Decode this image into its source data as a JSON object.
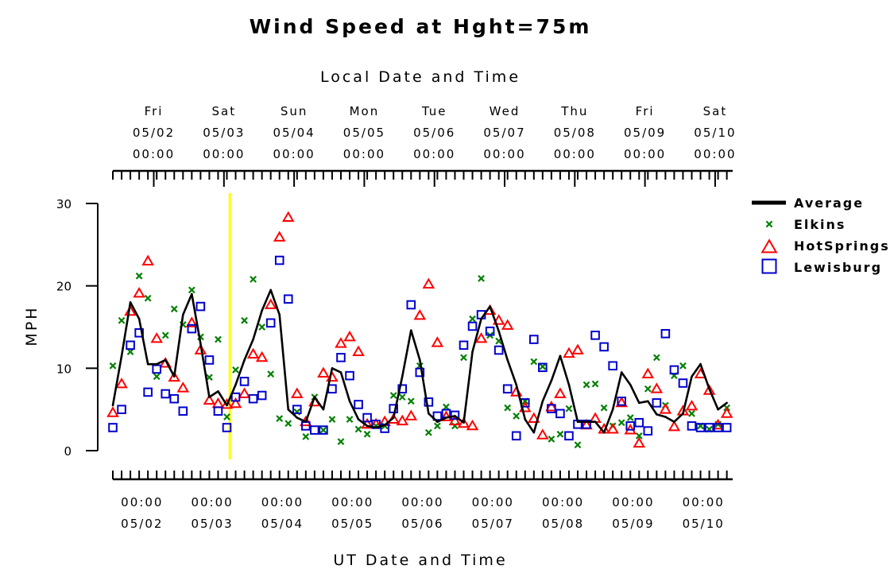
{
  "chart_data": {
    "type": "line",
    "title": "Wind Speed at Hght=75m",
    "top_axis_label": "Local Date and Time",
    "xlabel": "UT Date and Time",
    "ylabel": "MPH",
    "ylim": [
      0,
      30
    ],
    "y_ticks": [
      "0",
      "10",
      "20",
      "30"
    ],
    "x_unit": "hours since 05/01 00:00 UT",
    "xlim": [
      14,
      226
    ],
    "ut_ticks": [
      {
        "time": "00:00",
        "date": "05/02"
      },
      {
        "time": "00:00",
        "date": "05/03"
      },
      {
        "time": "00:00",
        "date": "05/04"
      },
      {
        "time": "00:00",
        "date": "05/05"
      },
      {
        "time": "00:00",
        "date": "05/06"
      },
      {
        "time": "00:00",
        "date": "05/07"
      },
      {
        "time": "00:00",
        "date": "05/08"
      },
      {
        "time": "00:00",
        "date": "05/09"
      },
      {
        "time": "00:00",
        "date": "05/10"
      }
    ],
    "local_ticks": [
      {
        "day": "Fri",
        "date": "05/02",
        "time": "00:00"
      },
      {
        "day": "Sat",
        "date": "05/03",
        "time": "00:00"
      },
      {
        "day": "Sun",
        "date": "05/04",
        "time": "00:00"
      },
      {
        "day": "Mon",
        "date": "05/05",
        "time": "00:00"
      },
      {
        "day": "Tue",
        "date": "05/06",
        "time": "00:00"
      },
      {
        "day": "Wed",
        "date": "05/07",
        "time": "00:00"
      },
      {
        "day": "Thu",
        "date": "05/08",
        "time": "00:00"
      },
      {
        "day": "Fri",
        "date": "05/09",
        "time": "00:00"
      },
      {
        "day": "Sat",
        "date": "05/10",
        "time": "00:00"
      }
    ],
    "marker_line": {
      "x": 54,
      "color": "#ffff00"
    },
    "legend_position": "right",
    "series": [
      {
        "name": "Average",
        "style": "line",
        "color": "#000000",
        "x": [
          14,
          17,
          20,
          23,
          26,
          29,
          32,
          35,
          38,
          41,
          44,
          47,
          50,
          53,
          56,
          59,
          62,
          65,
          68,
          71,
          74,
          77,
          80,
          83,
          86,
          89,
          92,
          95,
          98,
          101,
          104,
          107,
          110,
          113,
          116,
          119,
          122,
          125,
          128,
          131,
          134,
          137,
          140,
          143,
          146,
          149,
          152,
          155,
          158,
          161,
          164,
          167,
          170,
          173,
          176,
          179,
          182,
          185,
          188,
          191,
          194,
          197,
          200,
          203,
          206,
          209,
          212,
          215,
          218,
          221,
          224
        ],
        "y": [
          5.5,
          11.5,
          18,
          16,
          10.5,
          10.5,
          11,
          9,
          16.5,
          19,
          13,
          6.5,
          7.2,
          5.5,
          8,
          11,
          13.5,
          17,
          19.5,
          16.5,
          5,
          4,
          3.5,
          6.5,
          5,
          10,
          9.5,
          6,
          3.8,
          3,
          2.8,
          3.1,
          4,
          9,
          14.6,
          11,
          4.5,
          3.5,
          4,
          4.2,
          3.4,
          12,
          16,
          17.5,
          14.5,
          11,
          8,
          3.8,
          2.2,
          6,
          8.5,
          11.5,
          8,
          3.5,
          3.5,
          3.5,
          2.2,
          5,
          9.5,
          8,
          5.8,
          6,
          4.4,
          4.1,
          3.5,
          4.5,
          9,
          10.5,
          7.5,
          5,
          5.8
        ]
      },
      {
        "name": "Elkins",
        "style": "x",
        "color": "#008000",
        "x": [
          14,
          17,
          20,
          23,
          26,
          29,
          32,
          35,
          38,
          41,
          44,
          47,
          50,
          53,
          56,
          59,
          62,
          65,
          68,
          71,
          74,
          77,
          80,
          83,
          86,
          89,
          92,
          95,
          98,
          101,
          104,
          107,
          110,
          113,
          116,
          119,
          122,
          125,
          128,
          131,
          134,
          137,
          140,
          143,
          146,
          149,
          152,
          155,
          158,
          161,
          164,
          167,
          170,
          173,
          176,
          179,
          182,
          185,
          188,
          191,
          194,
          197,
          200,
          203,
          206,
          209,
          212,
          215,
          218,
          221,
          224
        ],
        "y": [
          10.3,
          15.8,
          12,
          21.2,
          18.5,
          9,
          14,
          17.2,
          15.3,
          19.5,
          13.8,
          8.9,
          13.5,
          4.1,
          9.8,
          15.8,
          20.8,
          15,
          9.3,
          3.9,
          3.3,
          4.7,
          1.7,
          6.5,
          2.5,
          3.8,
          1.1,
          3.8,
          2.6,
          2,
          3,
          3,
          6.7,
          6.5,
          6,
          10.3,
          2.2,
          3,
          5.3,
          3,
          11.3,
          16,
          20.9,
          14,
          13.3,
          5.2,
          4.2,
          6,
          10.8,
          10.2,
          1.4,
          2,
          5.1,
          0.7,
          8,
          8.1,
          5.2,
          3,
          3.4,
          4,
          1.8,
          7.5,
          11.3,
          5.5,
          9.1,
          10.3,
          4.5,
          3,
          2.6,
          3.2,
          5.2
        ]
      },
      {
        "name": "HotSprings",
        "style": "triangle",
        "color": "#ff0000",
        "x": [
          14,
          17,
          20,
          23,
          26,
          29,
          32,
          35,
          38,
          41,
          44,
          47,
          50,
          53,
          56,
          59,
          62,
          65,
          68,
          71,
          74,
          77,
          80,
          83,
          86,
          89,
          92,
          95,
          98,
          101,
          104,
          107,
          110,
          113,
          116,
          119,
          122,
          125,
          128,
          131,
          134,
          137,
          140,
          143,
          146,
          149,
          152,
          155,
          158,
          161,
          164,
          167,
          170,
          173,
          176,
          179,
          182,
          185,
          188,
          191,
          194,
          197,
          200,
          203,
          206,
          209,
          212,
          215,
          218,
          221,
          224
        ],
        "y": [
          4.6,
          8.1,
          16.9,
          19.1,
          23,
          13.6,
          10.6,
          8.9,
          7.6,
          15.5,
          12.2,
          6.1,
          5.7,
          5.6,
          5.7,
          6.9,
          11.7,
          11.3,
          17.7,
          25.9,
          28.3,
          6.9,
          3.5,
          5.9,
          9.4,
          8.9,
          13,
          13.8,
          12,
          3.2,
          3.2,
          3.5,
          3.8,
          3.6,
          4.2,
          16.4,
          20.2,
          13.1,
          4.1,
          3.6,
          3.3,
          3,
          13.6,
          17,
          15.8,
          15.2,
          7.1,
          5.2,
          3.9,
          1.9,
          5.3,
          6.9,
          11.8,
          12.2,
          3.1,
          3.9,
          2.6,
          2.6,
          5.8,
          2.5,
          0.9,
          9.3,
          7.5,
          5,
          2.9,
          4.8,
          5.4,
          9.3,
          7.3,
          3.1,
          4.5
        ]
      },
      {
        "name": "Lewisburg",
        "style": "square",
        "color": "#0000cc",
        "x": [
          14,
          17,
          20,
          23,
          26,
          29,
          32,
          35,
          38,
          41,
          44,
          47,
          50,
          53,
          56,
          59,
          62,
          65,
          68,
          71,
          74,
          77,
          80,
          83,
          86,
          89,
          92,
          95,
          98,
          101,
          104,
          107,
          110,
          113,
          116,
          119,
          122,
          125,
          128,
          131,
          134,
          137,
          140,
          143,
          146,
          149,
          152,
          155,
          158,
          161,
          164,
          167,
          170,
          173,
          176,
          179,
          182,
          185,
          188,
          191,
          194,
          197,
          200,
          203,
          206,
          209,
          212,
          215,
          218,
          221,
          224
        ],
        "y": [
          2.8,
          5,
          12.8,
          14.3,
          7.1,
          9.9,
          6.9,
          6.3,
          4.8,
          14.8,
          17.5,
          11,
          4.8,
          2.8,
          6.5,
          8.4,
          6.3,
          6.7,
          15.5,
          23.1,
          18.4,
          5,
          3,
          2.5,
          2.5,
          7.5,
          11.3,
          9.1,
          5.6,
          4,
          3.2,
          2.7,
          5.1,
          7.5,
          17.7,
          9.5,
          5.9,
          4.2,
          4.5,
          4.3,
          12.8,
          15.1,
          16.5,
          14.5,
          12.2,
          7.5,
          1.8,
          5.8,
          13.5,
          10.1,
          5.1,
          4.5,
          1.8,
          3.2,
          3.2,
          14,
          12.6,
          10.3,
          6,
          3,
          3.4,
          2.4,
          5.8,
          14.2,
          9.8,
          8.2,
          3,
          2.8,
          2.8,
          2.8,
          2.8
        ]
      }
    ]
  }
}
